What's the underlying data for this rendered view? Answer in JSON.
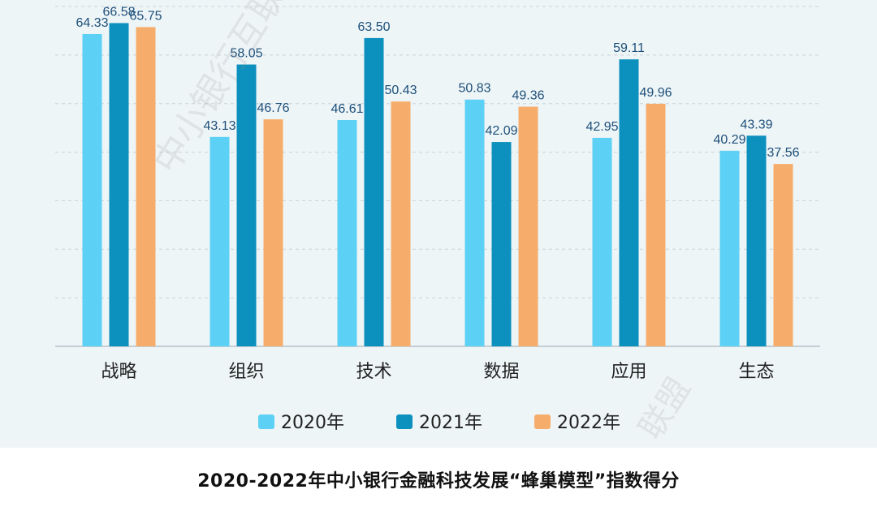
{
  "chart_data": {
    "type": "bar",
    "title": "2020-2022年中小银行金融科技发展“蜂巢模型”指数得分",
    "categories": [
      "战略",
      "组织",
      "技术",
      "数据",
      "应用",
      "生态"
    ],
    "series": [
      {
        "name": "2020年",
        "color": "#5dd0f5",
        "values": [
          64.33,
          43.13,
          46.61,
          50.83,
          42.95,
          40.29
        ]
      },
      {
        "name": "2021年",
        "color": "#0c90bd",
        "values": [
          66.58,
          58.05,
          63.5,
          42.09,
          59.11,
          43.39
        ]
      },
      {
        "name": "2022年",
        "color": "#f6ad6b",
        "values": [
          65.75,
          46.76,
          50.43,
          49.36,
          49.96,
          37.56
        ]
      }
    ],
    "ylim": [
      0,
      70
    ],
    "grid": true,
    "legend_position": "bottom",
    "xlabel": "",
    "ylabel": ""
  },
  "watermark": {
    "main": "中小银行互联网金融",
    "secondary": "联盟"
  }
}
